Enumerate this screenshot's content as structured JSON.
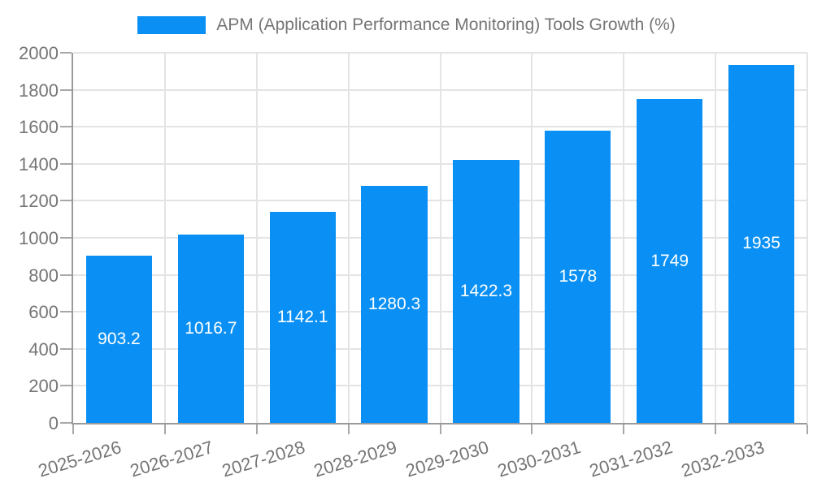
{
  "legend": {
    "label": "APM (Application Performance Monitoring) Tools Growth (%)"
  },
  "chart_data": {
    "type": "bar",
    "title": "APM (Application Performance Monitoring) Tools Growth (%)",
    "categories": [
      "2025-2026",
      "2026-2027",
      "2027-2028",
      "2028-2029",
      "2029-2030",
      "2030-2031",
      "2031-2032",
      "2032-2033"
    ],
    "values": [
      903.2,
      1016.7,
      1142.1,
      1280.3,
      1422.3,
      1578,
      1749,
      1935
    ],
    "value_labels": [
      "903.2",
      "1016.7",
      "1142.1",
      "1280.3",
      "1422.3",
      "1578",
      "1749",
      "1935"
    ],
    "xlabel": "",
    "ylabel": "",
    "ylim": [
      0,
      2000
    ],
    "ytick_step": 200,
    "grid": true,
    "legend_position": "top",
    "bar_width_fraction": 0.72,
    "x_label_rotation_deg": -17,
    "colors": {
      "bar": "#0a90f4",
      "bar_label": "#ffffff",
      "grid": "#e4e4e4",
      "axis": "#9a9a9a",
      "tick": "#a8a8a8",
      "tick_label": "#757575",
      "legend_text": "#757575",
      "background": "#ffffff"
    }
  }
}
